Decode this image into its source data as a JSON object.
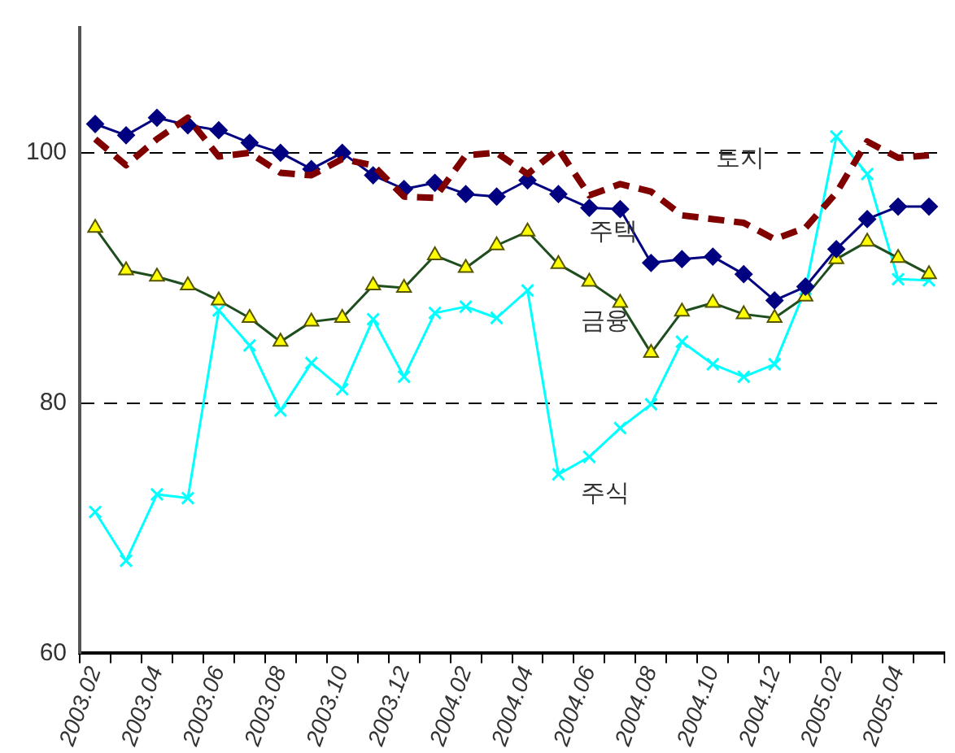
{
  "chart_data": {
    "type": "line",
    "categories": [
      "2003.02",
      null,
      "2003.04",
      null,
      "2003.06",
      null,
      "2003.08",
      null,
      "2003.10",
      null,
      "2003.12",
      null,
      "2004.02",
      null,
      "2004.04",
      null,
      "2004.06",
      null,
      "2004.08",
      null,
      "2004.10",
      null,
      "2004.12",
      null,
      "2005.02",
      null,
      "2005.04",
      null
    ],
    "series": [
      {
        "name": "토지",
        "color": "#800000",
        "line_style": "dashed",
        "marker": "none",
        "values": [
          101.1,
          99.0,
          101.1,
          102.8,
          99.7,
          100.0,
          98.4,
          98.2,
          99.5,
          99.0,
          96.5,
          96.4,
          99.8,
          100.0,
          98.3,
          100.3,
          96.6,
          97.5,
          96.9,
          95.0,
          94.7,
          94.4,
          93.1,
          94.0,
          96.8,
          100.9,
          99.6,
          99.8
        ]
      },
      {
        "name": "주택",
        "color": "#000080",
        "line_style": "solid",
        "marker": "diamond",
        "values": [
          102.3,
          101.4,
          102.8,
          102.2,
          101.8,
          100.8,
          100.0,
          98.7,
          100.0,
          98.2,
          97.1,
          97.6,
          96.7,
          96.5,
          97.8,
          96.7,
          95.6,
          95.5,
          91.2,
          91.5,
          91.7,
          90.3,
          88.2,
          89.3,
          92.3,
          94.7,
          95.7,
          95.7
        ]
      },
      {
        "name": "금융",
        "color": "#1e4d1e",
        "line_style": "solid",
        "marker": "triangle",
        "values": [
          94.0,
          90.6,
          90.1,
          89.4,
          88.2,
          86.8,
          84.9,
          86.5,
          86.8,
          89.4,
          89.2,
          91.8,
          90.8,
          92.6,
          93.7,
          91.1,
          89.7,
          88.0,
          84.0,
          87.3,
          88.0,
          87.1,
          86.8,
          88.5,
          91.5,
          92.9,
          91.6,
          90.3
        ]
      },
      {
        "name": "주식",
        "color": "#00ffff",
        "line_style": "solid",
        "marker": "cross",
        "values": [
          71.3,
          67.4,
          72.7,
          72.4,
          87.4,
          84.6,
          79.4,
          83.2,
          81.1,
          86.7,
          82.1,
          87.2,
          87.7,
          86.8,
          89.0,
          74.3,
          75.7,
          78.0,
          79.9,
          84.9,
          83.1,
          82.1,
          83.1,
          89.1,
          101.3,
          98.3,
          89.9,
          89.8
        ]
      }
    ],
    "ylim": [
      60,
      110
    ],
    "yticks": [
      60,
      80,
      100
    ],
    "grid": "y",
    "legend": false
  }
}
